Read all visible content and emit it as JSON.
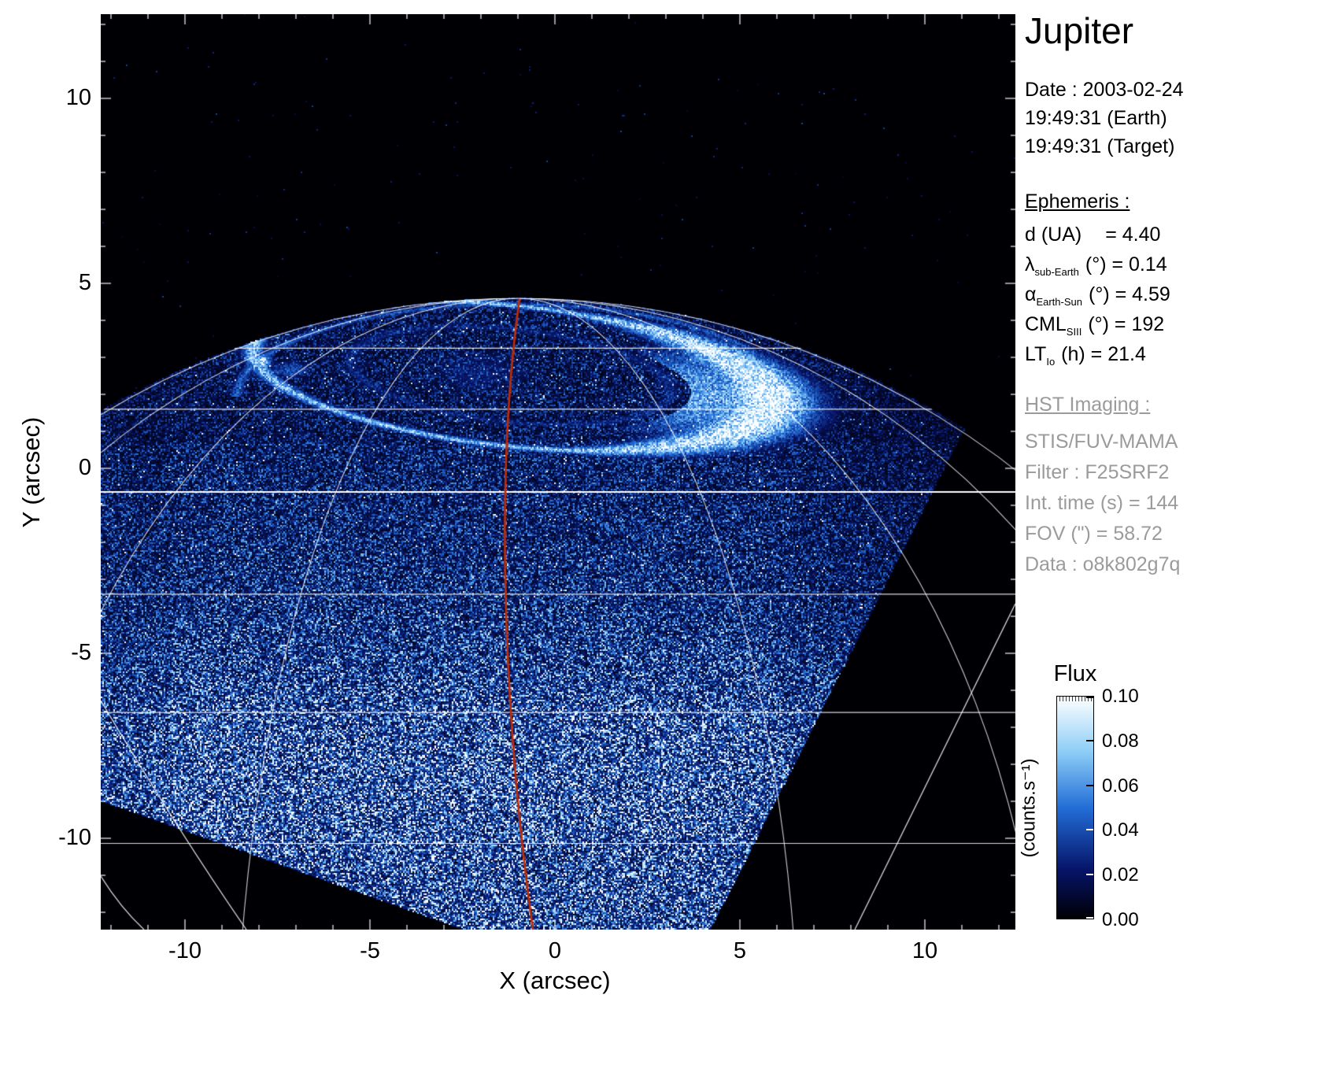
{
  "panel": {
    "title": "Jupiter",
    "date_lines": [
      "Date : 2003-02-24",
      "19:49:31 (Earth)",
      "19:49:31 (Target)"
    ],
    "ephemeris": {
      "heading": "Ephemeris :",
      "rows": [
        {
          "base": "d (UA)",
          "sub": "",
          "rest": "= 4.40"
        },
        {
          "base": "λ",
          "sub": "sub-Earth",
          "rest": "(°) = 0.14"
        },
        {
          "base": "α",
          "sub": "Earth-Sun",
          "rest": "(°) = 4.59"
        },
        {
          "base": "CML",
          "sub": "SIII",
          "rest": "(°) = 192"
        },
        {
          "base": "LT",
          "sub": "Io",
          "rest": "(h) = 21.4"
        }
      ]
    },
    "hst": {
      "heading": "HST Imaging :",
      "lines": [
        "STIS/FUV-MAMA",
        "Filter : F25SRF2",
        "Int. time (s) = 144",
        "FOV (\") = 58.72",
        "Data : o8k802g7q"
      ]
    }
  },
  "axes": {
    "x_label": "X (arcsec)",
    "y_label": "Y (arcsec)",
    "x_ticks": [
      "-10",
      "-5",
      "0",
      "5",
      "10"
    ],
    "y_ticks": [
      "10",
      "5",
      "0",
      "-5",
      "-10"
    ]
  },
  "chart_data": {
    "type": "heatmap",
    "title": "Jupiter",
    "xlabel": "X (arcsec)",
    "ylabel": "Y (arcsec)",
    "xlim": [
      -12.3,
      12.4
    ],
    "ylim": [
      -12.4,
      12.3
    ],
    "x_tick_values": [
      -10,
      -5,
      0,
      5,
      10
    ],
    "y_tick_values": [
      10,
      5,
      0,
      -5,
      -10
    ],
    "colorbar": {
      "title": "Flux",
      "unit": "(counts.s⁻¹)",
      "tick_labels": [
        "0.10",
        "0.08",
        "0.06",
        "0.04",
        "0.02",
        "0.00"
      ],
      "vmin": 0.0,
      "vmax": 0.1,
      "colormap": "black-blue-white",
      "stops": [
        {
          "t": 0.0,
          "c": "#000004"
        },
        {
          "t": 0.22,
          "c": "#061469"
        },
        {
          "t": 0.5,
          "c": "#236ed7"
        },
        {
          "t": 0.75,
          "c": "#8ccdf6"
        },
        {
          "t": 1.0,
          "c": "#ffffff"
        }
      ]
    },
    "content": {
      "description": "HST/STIS far-UV image of Jupiter's north polar aurora: bright white auroral oval near the top, speckled blue disk dayglow clipped by the rotated-square detector field of view, white planetary latitude/longitude graticule, red central-meridian (CML) line.",
      "background": "#000000",
      "graticule_color": "#ffffff",
      "cml_meridian_color": "#c22a00",
      "planet_center_arcsec": [
        -1.0,
        -17.8
      ],
      "planet_angular_radius_arcsec": 22.4,
      "auroral_oval_center_arcsec": [
        -1.2,
        2.5
      ],
      "auroral_oval_semi_axes_arcsec": [
        7.0,
        1.9
      ],
      "auroral_oval_tilt_deg": 6,
      "io_footprint_arcsec": [
        -7.9,
        2.9
      ],
      "fov_corners_arcsec": [
        [
          -20.5,
          -6.1
        ],
        [
          -9.3,
          16.7
        ],
        [
          14.6,
          8.0
        ],
        [
          3.2,
          -14.5
        ]
      ],
      "graticule": {
        "latitude_lines_deg": [
          20,
          30,
          40,
          50,
          60,
          70
        ],
        "meridian_offsets_deg": [
          20,
          40,
          60,
          80
        ]
      }
    }
  }
}
